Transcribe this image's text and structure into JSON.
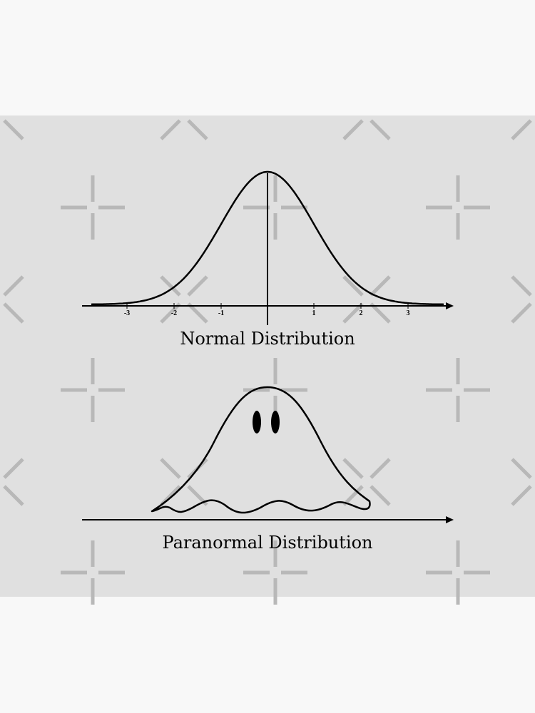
{
  "normal": {
    "tick_labels": [
      "-3",
      "-2",
      "-1",
      "1",
      "2",
      "3"
    ],
    "caption": "Normal Distribution"
  },
  "paranormal": {
    "caption": "Paranormal Distribution"
  }
}
